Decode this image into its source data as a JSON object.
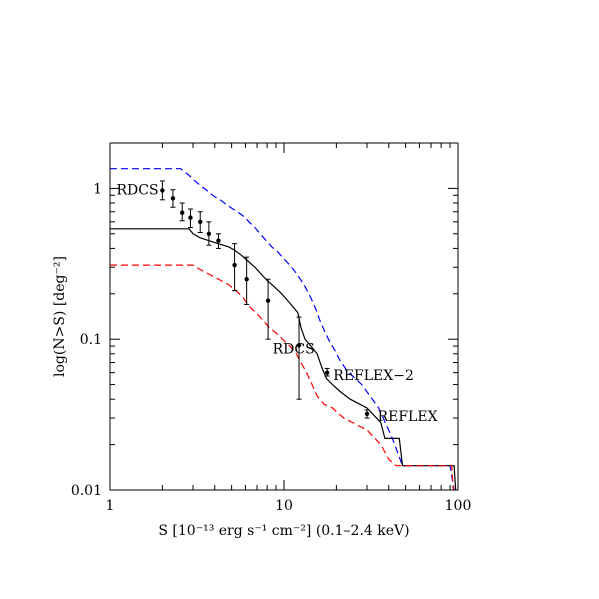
{
  "chart_data": {
    "type": "line",
    "xscale": "log",
    "yscale": "log",
    "xlim": [
      1,
      100
    ],
    "ylim": [
      0.01,
      2.0
    ],
    "xlabel": "S [10⁻¹³ erg s⁻¹ cm⁻²] (0.1–2.4 keV)",
    "ylabel": "log(N>S) [deg⁻²]",
    "x_ticks": [
      {
        "value": 1,
        "label": "1"
      },
      {
        "value": 10,
        "label": "10"
      },
      {
        "value": 100,
        "label": "100"
      }
    ],
    "y_ticks": [
      {
        "value": 0.01,
        "label": "0.01"
      },
      {
        "value": 0.1,
        "label": "0.1"
      },
      {
        "value": 1,
        "label": "1"
      }
    ],
    "grid": false,
    "series": [
      {
        "style": "dashed",
        "color": "#0000ff",
        "points": [
          [
            1.0,
            1.35
          ],
          [
            2.55,
            1.35
          ],
          [
            2.7,
            1.28
          ],
          [
            2.85,
            1.22
          ],
          [
            3.0,
            1.15
          ],
          [
            3.2,
            1.08
          ],
          [
            3.4,
            1.02
          ],
          [
            3.6,
            0.97
          ],
          [
            3.8,
            0.92
          ],
          [
            4.0,
            0.88
          ],
          [
            4.3,
            0.84
          ],
          [
            4.6,
            0.79
          ],
          [
            5.0,
            0.74
          ],
          [
            5.4,
            0.7
          ],
          [
            5.8,
            0.66
          ],
          [
            6.3,
            0.6
          ],
          [
            6.8,
            0.55
          ],
          [
            7.3,
            0.5
          ],
          [
            7.9,
            0.45
          ],
          [
            8.5,
            0.41
          ],
          [
            9.2,
            0.38
          ],
          [
            10.0,
            0.34
          ],
          [
            10.8,
            0.31
          ],
          [
            11.6,
            0.28
          ],
          [
            12.4,
            0.25
          ],
          [
            13.3,
            0.22
          ],
          [
            14.2,
            0.19
          ],
          [
            15.2,
            0.16
          ],
          [
            16.0,
            0.135
          ],
          [
            17.0,
            0.115
          ],
          [
            18.0,
            0.1
          ],
          [
            19.5,
            0.085
          ],
          [
            21.0,
            0.072
          ],
          [
            23.0,
            0.062
          ],
          [
            28.0,
            0.05
          ],
          [
            35.0,
            0.035
          ],
          [
            42.0,
            0.022
          ],
          [
            48.0,
            0.0145
          ],
          [
            90.0,
            0.0145
          ],
          [
            95.0,
            0.01
          ]
        ]
      },
      {
        "style": "solid",
        "color": "#000000",
        "points": [
          [
            1.0,
            0.54
          ],
          [
            2.85,
            0.54
          ],
          [
            3.0,
            0.5
          ],
          [
            3.3,
            0.47
          ],
          [
            3.7,
            0.45
          ],
          [
            4.2,
            0.43
          ],
          [
            4.8,
            0.41
          ],
          [
            5.2,
            0.39
          ],
          [
            5.7,
            0.36
          ],
          [
            6.2,
            0.33
          ],
          [
            6.8,
            0.3
          ],
          [
            7.4,
            0.27
          ],
          [
            8.0,
            0.245
          ],
          [
            8.7,
            0.225
          ],
          [
            9.5,
            0.205
          ],
          [
            10.3,
            0.185
          ],
          [
            11.2,
            0.165
          ],
          [
            12.0,
            0.15
          ],
          [
            12.5,
            0.12
          ],
          [
            13.2,
            0.1
          ],
          [
            14.3,
            0.09
          ],
          [
            15.5,
            0.08
          ],
          [
            16.5,
            0.065
          ],
          [
            17.5,
            0.055
          ],
          [
            19.0,
            0.05
          ],
          [
            21.0,
            0.045
          ],
          [
            24.0,
            0.04
          ],
          [
            30.0,
            0.035
          ],
          [
            36.0,
            0.028
          ],
          [
            38.0,
            0.022
          ],
          [
            46.0,
            0.022
          ],
          [
            48.0,
            0.0145
          ],
          [
            95.0,
            0.0145
          ],
          [
            97.0,
            0.01
          ]
        ]
      },
      {
        "style": "dashed",
        "color": "#ff0000",
        "points": [
          [
            1.0,
            0.31
          ],
          [
            3.0,
            0.31
          ],
          [
            3.3,
            0.29
          ],
          [
            3.7,
            0.27
          ],
          [
            4.2,
            0.25
          ],
          [
            4.8,
            0.23
          ],
          [
            5.3,
            0.21
          ],
          [
            5.8,
            0.19
          ],
          [
            6.3,
            0.165
          ],
          [
            6.9,
            0.15
          ],
          [
            7.5,
            0.135
          ],
          [
            8.2,
            0.12
          ],
          [
            9.0,
            0.11
          ],
          [
            9.8,
            0.1
          ],
          [
            10.8,
            0.09
          ],
          [
            11.8,
            0.08
          ],
          [
            12.5,
            0.07
          ],
          [
            13.5,
            0.06
          ],
          [
            14.5,
            0.05
          ],
          [
            15.5,
            0.042
          ],
          [
            17.0,
            0.037
          ],
          [
            19.0,
            0.035
          ],
          [
            22.0,
            0.03
          ],
          [
            30.0,
            0.025
          ],
          [
            36.0,
            0.02
          ],
          [
            40.0,
            0.016
          ],
          [
            44.0,
            0.0145
          ],
          [
            92.0,
            0.0145
          ],
          [
            94.0,
            0.01
          ]
        ]
      }
    ],
    "error_bar_points": [
      {
        "x": 2.0,
        "y": 0.97,
        "lo": 0.84,
        "hi": 1.12
      },
      {
        "x": 2.3,
        "y": 0.86,
        "lo": 0.75,
        "hi": 0.98
      },
      {
        "x": 2.6,
        "y": 0.69,
        "lo": 0.61,
        "hi": 0.8
      },
      {
        "x": 2.9,
        "y": 0.64,
        "lo": 0.55,
        "hi": 0.73
      },
      {
        "x": 3.3,
        "y": 0.6,
        "lo": 0.51,
        "hi": 0.7
      },
      {
        "x": 3.7,
        "y": 0.5,
        "lo": 0.42,
        "hi": 0.6
      },
      {
        "x": 4.2,
        "y": 0.45,
        "lo": 0.4,
        "hi": 0.5
      },
      {
        "x": 5.2,
        "y": 0.31,
        "lo": 0.21,
        "hi": 0.43
      },
      {
        "x": 6.1,
        "y": 0.25,
        "lo": 0.17,
        "hi": 0.35
      },
      {
        "x": 8.1,
        "y": 0.18,
        "lo": 0.1,
        "hi": 0.25
      },
      {
        "x": 12.2,
        "y": 0.091,
        "lo": 0.04,
        "hi": 0.14
      },
      {
        "x": 17.7,
        "y": 0.06,
        "lo": 0.057,
        "hi": 0.064
      },
      {
        "x": 30.0,
        "y": 0.032,
        "lo": 0.03,
        "hi": 0.034
      }
    ],
    "annotations": [
      {
        "text": "RDCS",
        "x": 1.09,
        "y": 0.98
      },
      {
        "text": "RDCS",
        "x": 8.6,
        "y": 0.087
      },
      {
        "text": "REFLEX−2",
        "x": 19.2,
        "y": 0.058
      },
      {
        "text": "REFLEX",
        "x": 34.5,
        "y": 0.031
      }
    ]
  }
}
